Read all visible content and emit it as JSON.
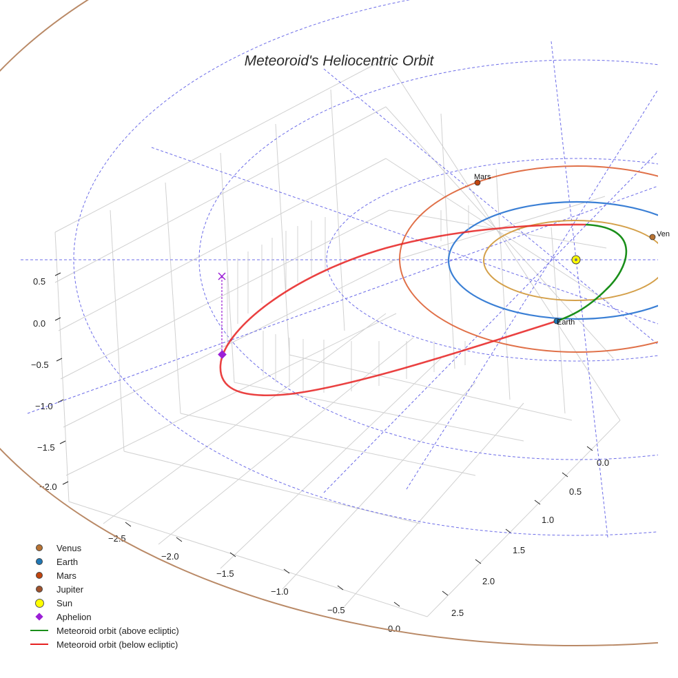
{
  "chart_data": {
    "type": "line",
    "projection": "3d",
    "title": "Meteoroid's Heliocentric Orbit",
    "xlabel": "",
    "ylabel": "",
    "zlabel": "",
    "x_ticks": [
      "−2.5",
      "−2.0",
      "−1.5",
      "−1.0",
      "−0.5",
      "0.0"
    ],
    "y_ticks": [
      "0.0",
      "0.5",
      "1.0",
      "1.5",
      "2.0",
      "2.5"
    ],
    "z_ticks": [
      "0.5",
      "0.0",
      "−0.5",
      "−1.0",
      "−1.5",
      "−2.0"
    ],
    "xlim": [
      -2.9,
      0.3
    ],
    "ylim": [
      -0.3,
      2.8
    ],
    "zlim": [
      -2.2,
      0.7
    ],
    "grid": true,
    "legend_position": "bottom-left",
    "planets": [
      {
        "name": "Venus",
        "label": "Ven",
        "orbit_radius_au": 0.72,
        "orbit_color": "#d4a04a",
        "marker_color": "#b87333"
      },
      {
        "name": "Earth",
        "label": "Earth",
        "orbit_radius_au": 1.0,
        "orbit_color": "#3a7fd5",
        "marker_color": "#1f77b4"
      },
      {
        "name": "Mars",
        "label": "Mars",
        "orbit_radius_au": 1.52,
        "orbit_color": "#e07048",
        "marker_color": "#c1440e"
      },
      {
        "name": "Jupiter",
        "label": "",
        "orbit_radius_au": 5.2,
        "orbit_color": "#b98966",
        "marker_color": "#a0522d"
      }
    ],
    "sun": {
      "name": "Sun",
      "x": 0,
      "y": 0,
      "z": 0,
      "color": "#ffff00"
    },
    "meteoroid_orbit": {
      "perihelion_au": 0.98,
      "aphelion_au": 2.7,
      "aphelion_point": {
        "x": -2.6,
        "y": 0.25,
        "z": -0.45
      },
      "above_ecliptic_color": "#1a8f1a",
      "below_ecliptic_color": "#e62020"
    },
    "legend": [
      {
        "label": "Venus",
        "kind": "dot",
        "color": "#b87333"
      },
      {
        "label": "Earth",
        "kind": "dot",
        "color": "#1f77b4"
      },
      {
        "label": "Mars",
        "kind": "dot",
        "color": "#c1440e"
      },
      {
        "label": "Jupiter",
        "kind": "dot",
        "color": "#a0522d"
      },
      {
        "label": "Sun",
        "kind": "sun",
        "color": "#ffff00"
      },
      {
        "label": "Aphelion",
        "kind": "diamond",
        "color": "#9b1fd6"
      },
      {
        "label": "Meteoroid orbit (above ecliptic)",
        "kind": "line",
        "color": "#1a8f1a"
      },
      {
        "label": "Meteoroid orbit (below ecliptic)",
        "kind": "line",
        "color": "#e62020"
      }
    ]
  }
}
